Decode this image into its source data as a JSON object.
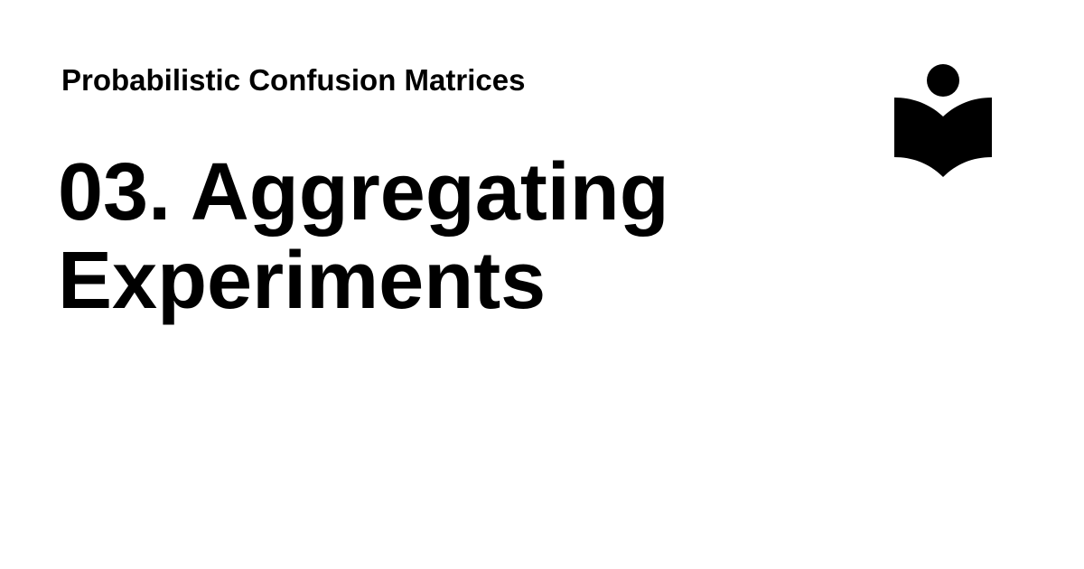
{
  "header": {
    "site_title": "Probabilistic Confusion Matrices"
  },
  "main": {
    "page_title": "03. Aggregating Experiments"
  },
  "logo": {
    "icon": "reading-person-book-icon",
    "color": "#000000"
  },
  "colors": {
    "background": "#ffffff",
    "text": "#000000"
  }
}
